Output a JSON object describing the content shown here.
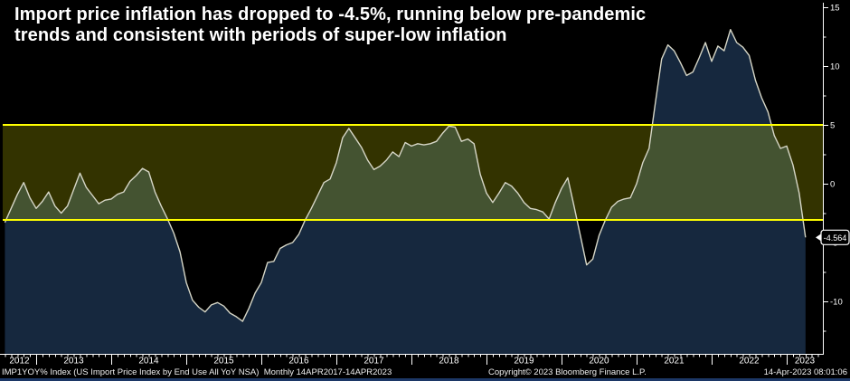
{
  "title": {
    "line1": "Import price inflation has dropped to -4.5%, running below pre-pandemic",
    "line2": "trends and consistent with periods of super-low inflation"
  },
  "footer": {
    "security": "IMP1YOY% Index (US Import Price Index by End Use All YoY NSA)  Monthly 14APR2017-14APR2023",
    "copyright": "Copyright© 2023 Bloomberg Finance L.P.",
    "timestamp": "14-Apr-2023 08:01:06"
  },
  "chart_data": {
    "type": "area",
    "title": "Import price inflation has dropped to -4.5%, running below pre-pandemic trends and consistent with periods of super-low inflation",
    "series_name": "IMP1YOY% Index (US Import Price Index by End Use All YoY NSA)",
    "frequency": "Monthly",
    "x": [
      "2012-07",
      "2012-08",
      "2012-09",
      "2012-10",
      "2012-11",
      "2012-12",
      "2013-01",
      "2013-02",
      "2013-03",
      "2013-04",
      "2013-05",
      "2013-06",
      "2013-07",
      "2013-08",
      "2013-09",
      "2013-10",
      "2013-11",
      "2013-12",
      "2014-01",
      "2014-02",
      "2014-03",
      "2014-04",
      "2014-05",
      "2014-06",
      "2014-07",
      "2014-08",
      "2014-09",
      "2014-10",
      "2014-11",
      "2014-12",
      "2015-01",
      "2015-02",
      "2015-03",
      "2015-04",
      "2015-05",
      "2015-06",
      "2015-07",
      "2015-08",
      "2015-09",
      "2015-10",
      "2015-11",
      "2015-12",
      "2016-01",
      "2016-02",
      "2016-03",
      "2016-04",
      "2016-05",
      "2016-06",
      "2016-07",
      "2016-08",
      "2016-09",
      "2016-10",
      "2016-11",
      "2016-12",
      "2017-01",
      "2017-02",
      "2017-03",
      "2017-04",
      "2017-05",
      "2017-06",
      "2017-07",
      "2017-08",
      "2017-09",
      "2017-10",
      "2017-11",
      "2017-12",
      "2018-01",
      "2018-02",
      "2018-03",
      "2018-04",
      "2018-05",
      "2018-06",
      "2018-07",
      "2018-08",
      "2018-09",
      "2018-10",
      "2018-11",
      "2018-12",
      "2019-01",
      "2019-02",
      "2019-03",
      "2019-04",
      "2019-05",
      "2019-06",
      "2019-07",
      "2019-08",
      "2019-09",
      "2019-10",
      "2019-11",
      "2019-12",
      "2020-01",
      "2020-02",
      "2020-03",
      "2020-04",
      "2020-05",
      "2020-06",
      "2020-07",
      "2020-08",
      "2020-09",
      "2020-10",
      "2020-11",
      "2020-12",
      "2021-01",
      "2021-02",
      "2021-03",
      "2021-04",
      "2021-05",
      "2021-06",
      "2021-07",
      "2021-08",
      "2021-09",
      "2021-10",
      "2021-11",
      "2021-12",
      "2022-01",
      "2022-02",
      "2022-03",
      "2022-04",
      "2022-05",
      "2022-06",
      "2022-07",
      "2022-08",
      "2022-09",
      "2022-10",
      "2022-11",
      "2022-12",
      "2023-01",
      "2023-02",
      "2023-03"
    ],
    "values": [
      -3.3,
      -2.1,
      -0.9,
      0.1,
      -1.2,
      -2.1,
      -1.5,
      -0.7,
      -1.9,
      -2.5,
      -1.9,
      -0.5,
      0.9,
      -0.3,
      -1.0,
      -1.7,
      -1.4,
      -1.3,
      -0.9,
      -0.7,
      0.2,
      0.7,
      1.3,
      1.0,
      -0.7,
      -1.9,
      -3.0,
      -4.2,
      -5.8,
      -8.4,
      -9.9,
      -10.5,
      -10.9,
      -10.3,
      -10.1,
      -10.4,
      -11.0,
      -11.3,
      -11.7,
      -10.6,
      -9.3,
      -8.4,
      -6.7,
      -6.6,
      -5.5,
      -5.2,
      -5.0,
      -4.3,
      -3.1,
      -2.1,
      -1.0,
      0.1,
      0.4,
      1.8,
      3.9,
      4.7,
      3.9,
      3.1,
      2.0,
      1.2,
      1.5,
      2.0,
      2.7,
      2.3,
      3.5,
      3.2,
      3.4,
      3.3,
      3.4,
      3.6,
      4.3,
      4.9,
      4.8,
      3.6,
      3.8,
      3.4,
      0.8,
      -0.8,
      -1.6,
      -0.8,
      0.1,
      -0.2,
      -0.8,
      -1.6,
      -2.1,
      -2.2,
      -2.4,
      -3.0,
      -1.6,
      -0.4,
      0.5,
      -1.9,
      -4.4,
      -6.9,
      -6.4,
      -4.4,
      -3.1,
      -2.0,
      -1.5,
      -1.3,
      -1.2,
      0.0,
      1.8,
      3.0,
      6.9,
      10.6,
      11.8,
      11.3,
      10.3,
      9.2,
      9.5,
      10.7,
      12.0,
      10.4,
      11.7,
      11.3,
      13.1,
      12.0,
      11.6,
      10.9,
      8.8,
      7.3,
      6.1,
      4.1,
      3.0,
      3.2,
      1.6,
      -0.8,
      -4.564
    ],
    "last_value": -4.564,
    "last_label": "-4.564",
    "ylim": [
      -14.9,
      15.4
    ],
    "yticks": [
      15,
      10,
      5,
      0,
      -5,
      -10
    ],
    "yticks_minor": [
      12.5,
      7.5,
      2.5,
      -2.5,
      -7.5,
      -12.5
    ],
    "xticks_years": [
      2012,
      2013,
      2014,
      2015,
      2016,
      2017,
      2018,
      2019,
      2020,
      2021,
      2022,
      2023
    ],
    "hlines": [
      5,
      -3.08
    ],
    "band": {
      "from": 5,
      "to": -3.08
    },
    "legend_position": "none",
    "grid": false,
    "colors": {
      "background": "#000000",
      "area_fill": "#16283e",
      "band_fill": "rgba(255,255,0,0.20)",
      "hline": "#ffff00",
      "series_line": "#d6d6c6",
      "axis": "#ffffff",
      "bubble_fill": "#000000",
      "bubble_border": "#ffffff"
    }
  }
}
